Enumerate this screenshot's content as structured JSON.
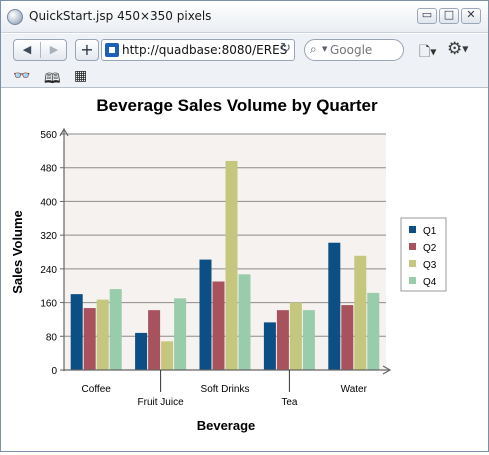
{
  "window": {
    "title": "QuickStart.jsp 450×350 pixels",
    "controls": {
      "minimize": "▭",
      "maximize": "□",
      "close": "✕"
    }
  },
  "toolbar": {
    "back_label": "◀",
    "forward_label": "▶",
    "new_tab_label": "+",
    "url": "http://quadbase:8080/ERES",
    "search_placeholder": "Google",
    "reload_icon": "reload-icon",
    "page_menu_icon": "page-icon",
    "settings_icon": "gear-icon"
  },
  "bookmarks_bar": {
    "icons": [
      "reader-icon",
      "book-icon",
      "grid-icon"
    ]
  },
  "chart_data": {
    "type": "bar",
    "title": "Beverage Sales Volume by Quarter",
    "xlabel": "Beverage",
    "ylabel": "Sales Volume",
    "categories": [
      "Coffee",
      "Fruit Juice",
      "Soft Drinks",
      "Tea",
      "Water"
    ],
    "ylim": [
      0,
      560
    ],
    "yticks": [
      0,
      80,
      160,
      240,
      320,
      400,
      480,
      560
    ],
    "grid": true,
    "legend_position": "right",
    "series": [
      {
        "name": "Q1",
        "color": "#0b4f84",
        "values": [
          180,
          88,
          262,
          113,
          302
        ]
      },
      {
        "name": "Q2",
        "color": "#a8525e",
        "values": [
          147,
          142,
          210,
          142,
          154
        ]
      },
      {
        "name": "Q3",
        "color": "#c6c77e",
        "values": [
          167,
          68,
          496,
          160,
          271
        ]
      },
      {
        "name": "Q4",
        "color": "#98ccab",
        "values": [
          192,
          170,
          227,
          142,
          183
        ]
      }
    ]
  }
}
